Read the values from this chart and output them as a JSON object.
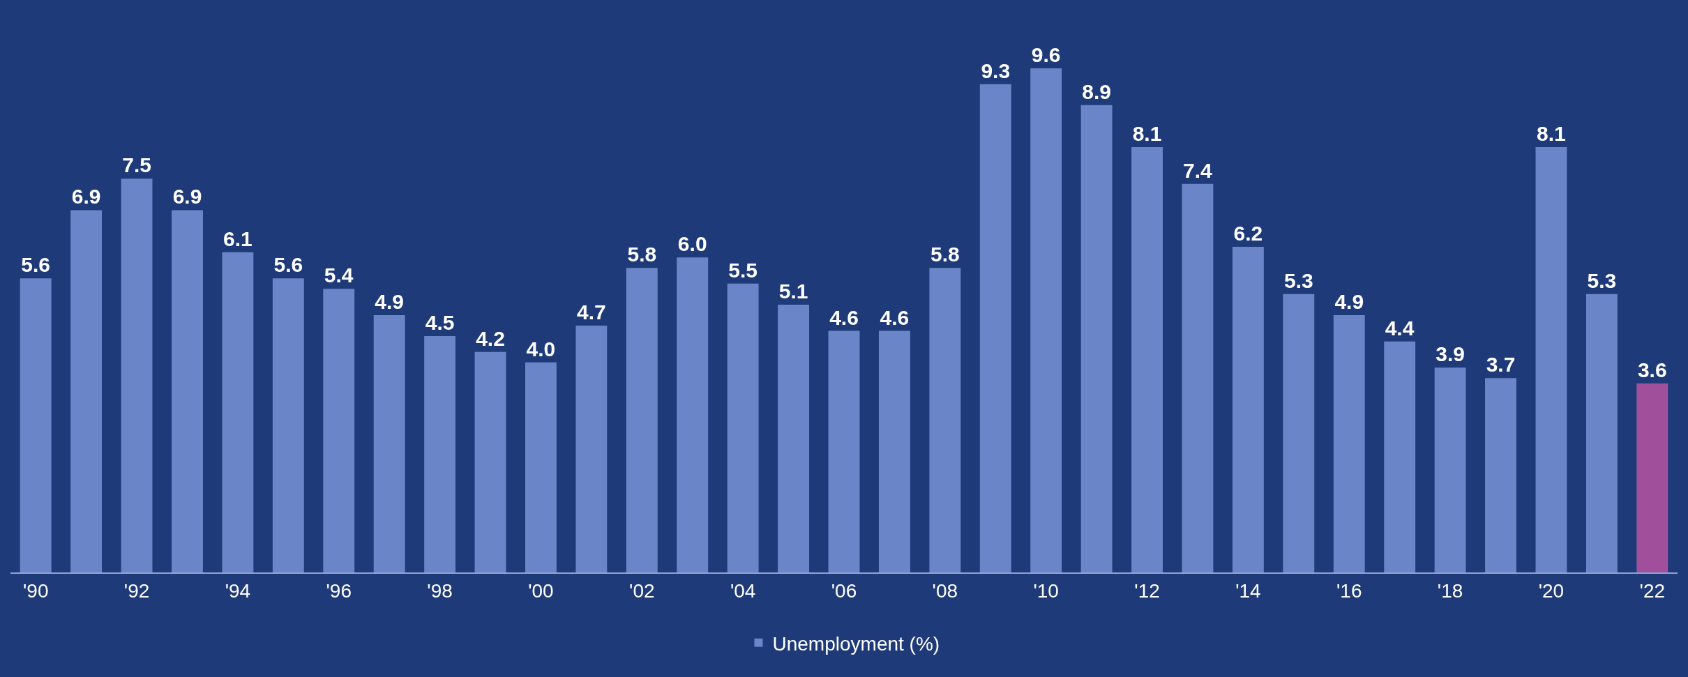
{
  "chart_data": {
    "type": "bar",
    "categories": [
      "'90",
      null,
      "'92",
      null,
      "'94",
      null,
      "'96",
      null,
      "'98",
      null,
      "'00",
      null,
      "'02",
      null,
      "'04",
      null,
      "'06",
      null,
      "'08",
      null,
      "'10",
      null,
      "'12",
      null,
      "'14",
      null,
      "'16",
      null,
      "'18",
      null,
      "'20",
      null,
      "'22"
    ],
    "series": [
      {
        "name": "Unemployment (%)",
        "color": "#6b86c8",
        "values": [
          5.6,
          6.9,
          7.5,
          6.9,
          6.1,
          5.6,
          5.4,
          4.9,
          4.5,
          4.2,
          4.0,
          4.7,
          5.8,
          6.0,
          5.5,
          5.1,
          4.6,
          4.6,
          5.8,
          9.3,
          9.6,
          8.9,
          8.1,
          7.4,
          6.2,
          5.3,
          4.9,
          4.4,
          3.9,
          3.7,
          8.1,
          5.3,
          3.6
        ],
        "colors": [
          "#6b86c8",
          "#6b86c8",
          "#6b86c8",
          "#6b86c8",
          "#6b86c8",
          "#6b86c8",
          "#6b86c8",
          "#6b86c8",
          "#6b86c8",
          "#6b86c8",
          "#6b86c8",
          "#6b86c8",
          "#6b86c8",
          "#6b86c8",
          "#6b86c8",
          "#6b86c8",
          "#6b86c8",
          "#6b86c8",
          "#6b86c8",
          "#6b86c8",
          "#6b86c8",
          "#6b86c8",
          "#6b86c8",
          "#6b86c8",
          "#6b86c8",
          "#6b86c8",
          "#6b86c8",
          "#6b86c8",
          "#6b86c8",
          "#6b86c8",
          "#6b86c8",
          "#6b86c8",
          "#a0509a"
        ],
        "value_labels": [
          "5.6",
          "6.9",
          "7.5",
          "6.9",
          "6.1",
          "5.6",
          "5.4",
          "4.9",
          "4.5",
          "4.2",
          "4.0",
          "4.7",
          "5.8",
          "6.0",
          "5.5",
          "5.1",
          "4.6",
          "4.6",
          "5.8",
          "9.3",
          "9.6",
          "8.9",
          "8.1",
          "7.4",
          "6.2",
          "5.3",
          "4.9",
          "4.4",
          "3.9",
          "3.7",
          "8.1",
          "5.3",
          "3.6"
        ]
      }
    ],
    "legend": "bottom"
  }
}
